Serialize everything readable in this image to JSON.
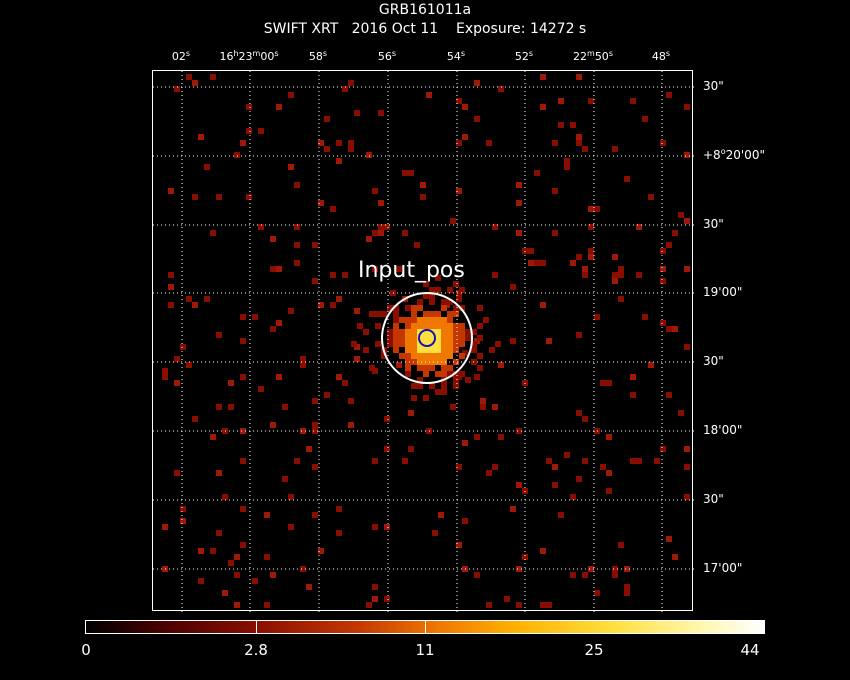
{
  "title": "GRB161011a",
  "subtitle": "SWIFT XRT   2016 Oct 11    Exposure: 14272 s",
  "ra_ticks": [
    {
      "main": "02",
      "sup": "s"
    },
    {
      "main": "16",
      "sup": "h",
      "main2": "23",
      "sup2": "m",
      "main3": "00",
      "sup3": "s"
    },
    {
      "main": "58",
      "sup": "s"
    },
    {
      "main": "56",
      "sup": "s"
    },
    {
      "main": "54",
      "sup": "s"
    },
    {
      "main": "52",
      "sup": "s"
    },
    {
      "main": "22",
      "sup": "m",
      "main2": "50",
      "sup2": "s"
    },
    {
      "main": "48",
      "sup": "s"
    }
  ],
  "dec_ticks": [
    {
      "text": "30\""
    },
    {
      "pre": "+8",
      "sup": "o",
      "post": "20'00\""
    },
    {
      "text": "30\""
    },
    {
      "text": "19'00\""
    },
    {
      "text": "30\""
    },
    {
      "text": "18'00\""
    },
    {
      "text": "30\""
    },
    {
      "text": "17'00\""
    }
  ],
  "source_label": "Input_pos",
  "colorbar": {
    "labels": [
      "0",
      "2.8",
      "11",
      "25",
      "44"
    ]
  },
  "colors": {
    "background": "#000000",
    "grid": "#ffffff",
    "circle": "#ffffff",
    "inner_circle": "#1010c0",
    "counts_low": "#8a0e00",
    "counts_mid": "#f07800",
    "counts_high": "#ffe040"
  }
}
